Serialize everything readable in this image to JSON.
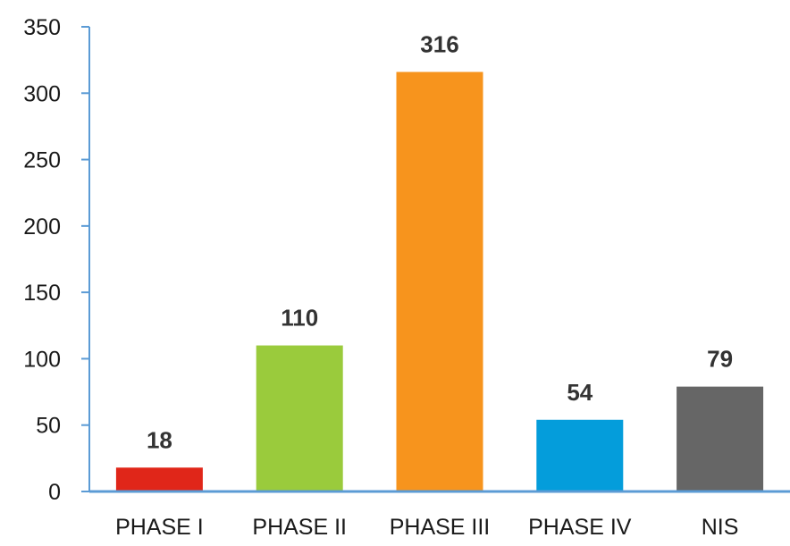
{
  "chart_data": {
    "type": "bar",
    "categories": [
      "PHASE I",
      "PHASE II",
      "PHASE III",
      "PHASE IV",
      "NIS"
    ],
    "values": [
      18,
      110,
      316,
      54,
      79
    ],
    "data_labels": [
      "18",
      "110",
      "316",
      "54",
      "79"
    ],
    "colors": [
      "#e02619",
      "#9acb3c",
      "#f7941d",
      "#049ddb",
      "#666666"
    ],
    "axis_color": "#5b9bd5",
    "ylim": [
      0,
      350
    ],
    "yticks": [
      0,
      50,
      100,
      150,
      200,
      250,
      300,
      350
    ],
    "grid": false,
    "legend": "none",
    "title": "",
    "xlabel": "",
    "ylabel": ""
  }
}
